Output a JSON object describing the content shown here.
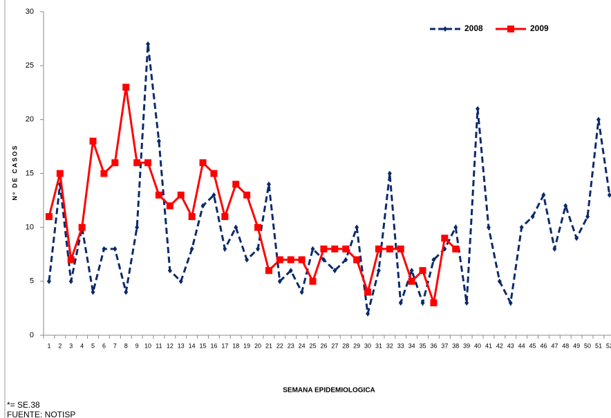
{
  "chart_data": {
    "type": "line",
    "y_label": "Nº DE CASOS",
    "x_label": "SEMANA EPIDEMIOLOGICA",
    "notes": [
      "*= SE.38",
      "FUENTE: NOTISP"
    ],
    "categories": [
      "1",
      "2",
      "3",
      "4",
      "5",
      "6",
      "7",
      "8",
      "9",
      "10",
      "11",
      "12",
      "13",
      "14",
      "15",
      "16",
      "17",
      "18",
      "19",
      "20",
      "21",
      "22",
      "23",
      "24",
      "25",
      "26",
      "27",
      "28",
      "29",
      "30",
      "31",
      "32",
      "33",
      "34",
      "35",
      "36",
      "37",
      "38",
      "39",
      "40",
      "41",
      "42",
      "43",
      "44",
      "45",
      "46",
      "47",
      "48",
      "49",
      "50",
      "51",
      "52"
    ],
    "series": [
      {
        "name": "2008",
        "color": "#0b2a6b",
        "dashed": true,
        "marker": "diamond",
        "values": [
          5,
          14,
          5,
          10,
          4,
          8,
          8,
          4,
          10,
          27,
          18,
          6,
          5,
          8,
          12,
          13,
          8,
          10,
          7,
          8,
          14,
          5,
          6,
          4,
          8,
          7,
          6,
          7,
          10,
          2,
          6,
          15,
          3,
          6,
          3,
          7,
          8,
          10,
          3,
          21,
          10,
          5,
          3,
          10,
          11,
          13,
          8,
          12,
          9,
          11,
          20,
          13
        ]
      },
      {
        "name": "2009",
        "color": "#ff0000",
        "dashed": false,
        "marker": "square",
        "values": [
          11,
          15,
          7,
          10,
          18,
          15,
          16,
          23,
          16,
          16,
          13,
          12,
          13,
          11,
          16,
          15,
          11,
          14,
          13,
          10,
          6,
          7,
          7,
          7,
          5,
          8,
          8,
          8,
          7,
          4,
          8,
          8,
          8,
          5,
          6,
          3,
          9,
          8,
          null,
          null,
          null,
          null,
          null,
          null,
          null,
          null,
          null,
          null,
          null,
          null,
          null,
          null
        ]
      }
    ],
    "ylim": [
      0,
      30
    ],
    "yticks": [
      0,
      5,
      10,
      15,
      20,
      25,
      30
    ],
    "grid": false,
    "legend": "top-right"
  }
}
